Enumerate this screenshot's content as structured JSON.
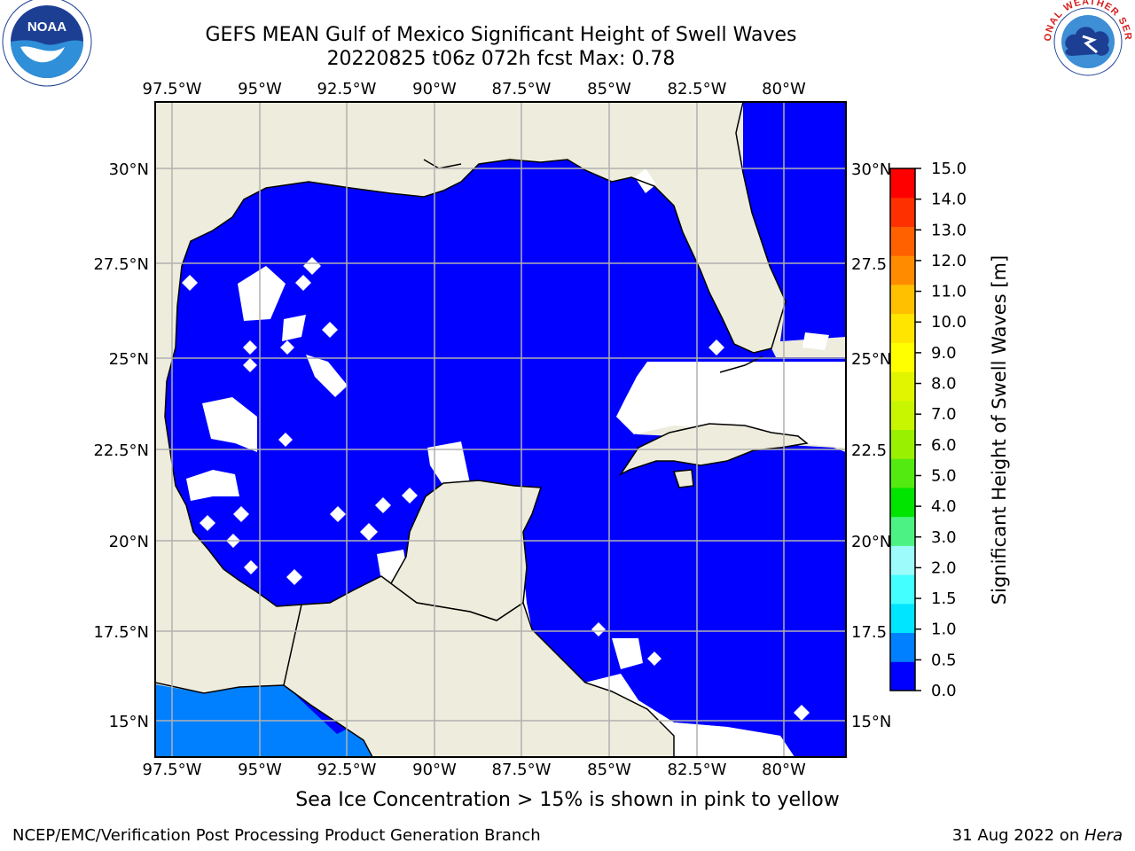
{
  "header": {
    "title_line1": "GEFS MEAN Gulf of Mexico Significant Height of Swell Waves",
    "title_line2": "20220825 t06z 072h fcst   Max: 0.78"
  },
  "logos": {
    "left": "NOAA",
    "left_ring_text": "NATIONAL OCEANIC AND ATMOSPHERIC ADMINISTRATION U.S. DEPARTMENT OF COMMERCE",
    "right_ring_text": "NATIONAL WEATHER SERVICE"
  },
  "map": {
    "lon_ticks": [
      "97.5°W",
      "95°W",
      "92.5°W",
      "90°W",
      "87.5°W",
      "85°W",
      "82.5°W",
      "80°W"
    ],
    "lat_ticks": [
      "30°N",
      "27.5°N",
      "25°N",
      "22.5°N",
      "20°N",
      "17.5°N",
      "15°N"
    ],
    "lat_ticks_right": [
      "30°N",
      "27.5",
      "25°N",
      "22.5",
      "20°N",
      "17.5",
      "15°N"
    ],
    "colors": {
      "land": "#eeecdc",
      "water_low": "#0000ff",
      "water_mid": "#0080ff",
      "grid": "#b0b0b0"
    }
  },
  "colorbar": {
    "label": "Significant Height of Swell Waves [m]",
    "ticks": [
      "15.0",
      "14.0",
      "13.0",
      "12.0",
      "11.0",
      "10.0",
      "9.0",
      "8.0",
      "7.0",
      "6.0",
      "5.0",
      "4.0",
      "3.0",
      "2.0",
      "1.5",
      "1.0",
      "0.5",
      "0.0"
    ],
    "colors": [
      "#0000ff",
      "#0080ff",
      "#00e5ff",
      "#44ffff",
      "#9efbfb",
      "#4cf384",
      "#00e400",
      "#53ea12",
      "#99f000",
      "#c8f600",
      "#e2f500",
      "#ffff00",
      "#ffe500",
      "#ffc000",
      "#ff8c00",
      "#ff6000",
      "#ff3000",
      "#ff0000"
    ]
  },
  "note": "Sea Ice Concentration > 15% is shown in pink to yellow",
  "footer": {
    "left": "NCEP/EMC/Verification Post Processing Product Generation Branch",
    "right_date": "31 Aug 2022 on ",
    "right_host": "Hera"
  }
}
